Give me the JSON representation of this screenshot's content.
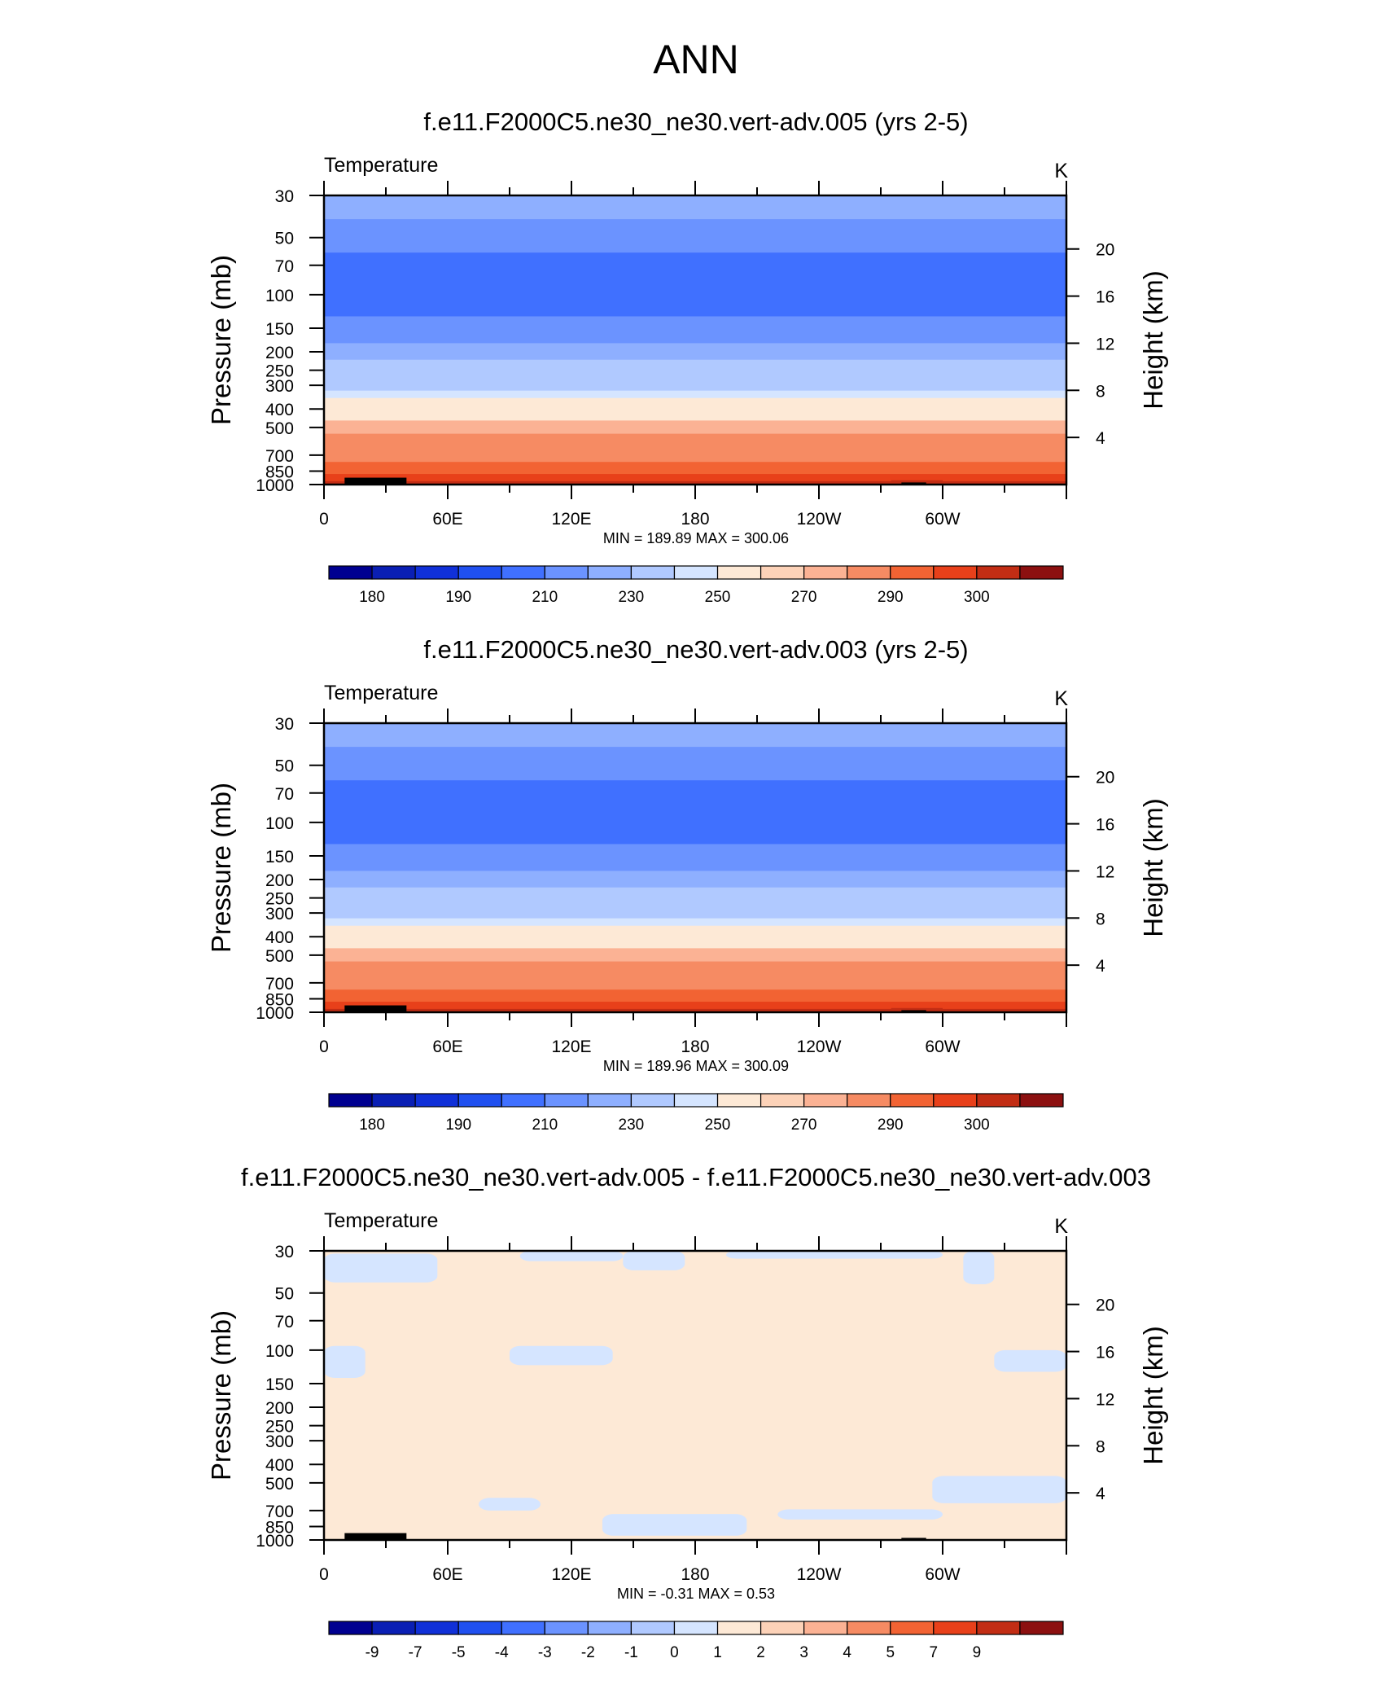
{
  "main_title": "ANN",
  "chart_data": [
    {
      "type": "heatmap",
      "title": "f.e11.F2000C5.ne30_ne30.vert-adv.005 (yrs 2-5)",
      "left_label": "Temperature",
      "unit_label": "K",
      "ylabel": "Pressure (mb)",
      "ylabel_right": "Height (km)",
      "y_ticks": [
        "30",
        "50",
        "70",
        "100",
        "150",
        "200",
        "250",
        "300",
        "400",
        "500",
        "700",
        "850",
        "1000"
      ],
      "y_right_ticks": [
        "20",
        "16",
        "12",
        "8",
        "4"
      ],
      "x_ticks": [
        "0",
        "60E",
        "120E",
        "180",
        "120W",
        "60W"
      ],
      "stats": "MIN = 189.89  MAX = 300.06",
      "colorbar_labels": [
        "180",
        "190",
        "210",
        "230",
        "250",
        "270",
        "290",
        "300"
      ],
      "levels": [
        {
          "p": 30,
          "value": 222
        },
        {
          "p": 40,
          "value": 214
        },
        {
          "p": 60,
          "value": 200
        },
        {
          "p": 130,
          "value": 212
        },
        {
          "p": 180,
          "value": 222
        },
        {
          "p": 220,
          "value": 230
        },
        {
          "p": 270,
          "value": 237
        },
        {
          "p": 320,
          "value": 243
        },
        {
          "p": 350,
          "value": 252
        },
        {
          "p": 400,
          "value": 258
        },
        {
          "p": 460,
          "value": 265
        },
        {
          "p": 540,
          "value": 272
        },
        {
          "p": 640,
          "value": 278
        },
        {
          "p": 760,
          "value": 285
        },
        {
          "p": 880,
          "value": 292
        },
        {
          "p": 960,
          "value": 297
        }
      ]
    },
    {
      "type": "heatmap",
      "title": "f.e11.F2000C5.ne30_ne30.vert-adv.003 (yrs 2-5)",
      "left_label": "Temperature",
      "unit_label": "K",
      "ylabel": "Pressure (mb)",
      "ylabel_right": "Height (km)",
      "y_ticks": [
        "30",
        "50",
        "70",
        "100",
        "150",
        "200",
        "250",
        "300",
        "400",
        "500",
        "700",
        "850",
        "1000"
      ],
      "y_right_ticks": [
        "20",
        "16",
        "12",
        "8",
        "4"
      ],
      "x_ticks": [
        "0",
        "60E",
        "120E",
        "180",
        "120W",
        "60W"
      ],
      "stats": "MIN = 189.96  MAX = 300.09",
      "colorbar_labels": [
        "180",
        "190",
        "210",
        "230",
        "250",
        "270",
        "290",
        "300"
      ],
      "levels": [
        {
          "p": 30,
          "value": 222
        },
        {
          "p": 40,
          "value": 214
        },
        {
          "p": 60,
          "value": 200
        },
        {
          "p": 130,
          "value": 212
        },
        {
          "p": 180,
          "value": 222
        },
        {
          "p": 220,
          "value": 230
        },
        {
          "p": 270,
          "value": 237
        },
        {
          "p": 320,
          "value": 243
        },
        {
          "p": 350,
          "value": 252
        },
        {
          "p": 400,
          "value": 258
        },
        {
          "p": 460,
          "value": 265
        },
        {
          "p": 540,
          "value": 272
        },
        {
          "p": 640,
          "value": 278
        },
        {
          "p": 760,
          "value": 285
        },
        {
          "p": 880,
          "value": 292
        },
        {
          "p": 960,
          "value": 297
        }
      ]
    },
    {
      "type": "heatmap",
      "title": "f.e11.F2000C5.ne30_ne30.vert-adv.005 - f.e11.F2000C5.ne30_ne30.vert-adv.003",
      "left_label": "Temperature",
      "unit_label": "K",
      "ylabel": "Pressure (mb)",
      "ylabel_right": "Height (km)",
      "y_ticks": [
        "30",
        "50",
        "70",
        "100",
        "150",
        "200",
        "250",
        "300",
        "400",
        "500",
        "700",
        "850",
        "1000"
      ],
      "y_right_ticks": [
        "20",
        "16",
        "12",
        "8",
        "4"
      ],
      "x_ticks": [
        "0",
        "60E",
        "120E",
        "180",
        "120W",
        "60W"
      ],
      "stats": "MIN =  -0.31  MAX =   0.53",
      "colorbar_labels": [
        "-9",
        "-7",
        "-5",
        "-4",
        "-3",
        "-2",
        "-1",
        "0",
        "1",
        "2",
        "3",
        "4",
        "5",
        "7",
        "9"
      ],
      "background_value": 0.5,
      "negative_patches": [
        {
          "lon": [
            0,
            55
          ],
          "p": [
            31,
            44
          ]
        },
        {
          "lon": [
            0,
            20
          ],
          "p": [
            95,
            140
          ]
        },
        {
          "lon": [
            90,
            140
          ],
          "p": [
            95,
            120
          ]
        },
        {
          "lon": [
            325,
            360
          ],
          "p": [
            100,
            130
          ]
        },
        {
          "lon": [
            95,
            145
          ],
          "p": [
            30,
            34
          ]
        },
        {
          "lon": [
            145,
            175
          ],
          "p": [
            30,
            38
          ]
        },
        {
          "lon": [
            195,
            300
          ],
          "p": [
            30,
            33
          ]
        },
        {
          "lon": [
            310,
            325
          ],
          "p": [
            30,
            45
          ]
        },
        {
          "lon": [
            220,
            300
          ],
          "p": [
            690,
            780
          ]
        },
        {
          "lon": [
            135,
            205
          ],
          "p": [
            730,
            950
          ]
        },
        {
          "lon": [
            295,
            360
          ],
          "p": [
            460,
            640
          ]
        },
        {
          "lon": [
            75,
            105
          ],
          "p": [
            600,
            700
          ]
        }
      ],
      "terrain_mask": [
        {
          "lon": [
            10,
            40
          ],
          "p": 920
        },
        {
          "lon": [
            280,
            292
          ],
          "p": 975
        }
      ]
    }
  ],
  "colors": {
    "temperature": [
      "#000090",
      "#0a1fb4",
      "#1030d8",
      "#2050f0",
      "#4070ff",
      "#6b93ff",
      "#8eafff",
      "#b0c9ff",
      "#d5e5ff",
      "#fde9d6",
      "#fcd2b8",
      "#fbb294",
      "#f68b63",
      "#f26333",
      "#e8401a",
      "#c22d14",
      "#8c1010"
    ],
    "diff_negative": "#d5e5ff",
    "diff_positive": "#fde9d6",
    "terrain": "#000000"
  }
}
